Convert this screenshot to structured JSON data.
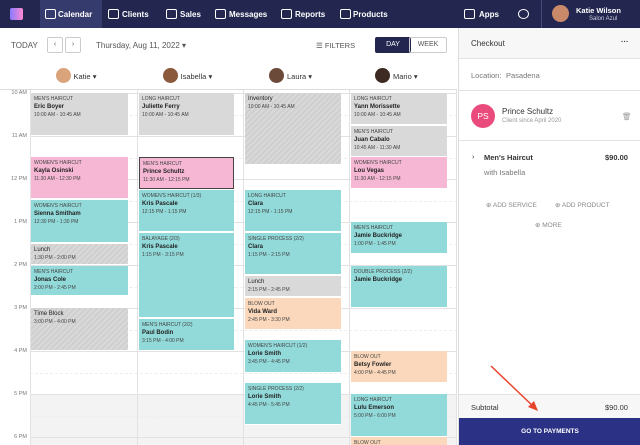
{
  "nav": {
    "items": [
      "Calendar",
      "Clients",
      "Sales",
      "Messages",
      "Reports",
      "Products"
    ],
    "apps": "Apps",
    "user": {
      "name": "Katie Wilson",
      "salon": "Salon Azul"
    }
  },
  "toolbar": {
    "today": "TODAY",
    "date": "Thursday, Aug 11, 2022",
    "filters": "FILTERS",
    "day": "DAY",
    "week": "WEEK"
  },
  "calendar": {
    "hours": [
      "10 AM",
      "11 AM",
      "12 PM",
      "1 PM",
      "2 PM",
      "3 PM",
      "4 PM",
      "5 PM",
      "6 PM"
    ],
    "staff": [
      {
        "name": "Katie",
        "appointments": [
          {
            "service": "MEN'S HAIRCUT",
            "client": "Eric Boyer",
            "time": "10:00 AM - 10:45 AM"
          },
          {
            "service": "WOMEN'S HAIRCUT",
            "client": "Kayla Osinski",
            "time": "11:30 AM - 12:30 PM"
          },
          {
            "service": "WOMEN'S HAIRCUT",
            "client": "Sienna Smitham",
            "time": "12:30 PM - 1:30 PM"
          },
          {
            "title": "Lunch",
            "time": "1:30 PM - 2:00 PM"
          },
          {
            "service": "MEN'S HAIRCUT",
            "client": "Jonas Cole",
            "time": "2:00 PM - 2:45 PM"
          },
          {
            "title": "Time Block",
            "time": "3:00 PM - 4:00 PM"
          }
        ]
      },
      {
        "name": "Isabella",
        "appointments": [
          {
            "service": "LONG HAIRCUT",
            "client": "Juliette Ferry",
            "time": "10:00 AM - 10:45 AM"
          },
          {
            "service": "MEN'S HAIRCUT",
            "client": "Prince Schultz",
            "time": "11:30 AM - 12:15 PM"
          },
          {
            "service": "WOMEN'S HAIRCUT (1/3)",
            "client": "Kris Pascale",
            "time": "12:15 PM - 1:15 PM"
          },
          {
            "service": "BALAYAGE (2/3)",
            "client": "Kris Pascale",
            "time": "1:15 PM - 3:15 PM"
          },
          {
            "service": "MEN'S HAIRCUT (2/2)",
            "client": "Paul Bodin",
            "time": "3:15 PM - 4:00 PM"
          }
        ]
      },
      {
        "name": "Laura",
        "appointments": [
          {
            "title": "Inventory",
            "time": "10:00 AM - 10:45 AM"
          },
          {
            "service": "LONG HAIRCUT",
            "client": "Clara",
            "time": "12:15 PM - 1:15 PM"
          },
          {
            "service": "SINGLE PROCESS (2/2)",
            "client": "Clara",
            "time": "1:15 PM - 2:15 PM"
          },
          {
            "title": "Lunch",
            "time": "2:15 PM - 2:45 PM"
          },
          {
            "service": "BLOW OUT",
            "client": "Vida Ward",
            "time": "2:45 PM - 3:30 PM"
          },
          {
            "service": "WOMEN'S HAIRCUT (1/2)",
            "client": "Lorie Smith",
            "time": "3:45 PM - 4:45 PM"
          },
          {
            "service": "SINGLE PROCESS (2/2)",
            "client": "Lorie Smith",
            "time": "4:45 PM - 5:45 PM"
          }
        ]
      },
      {
        "name": "Mario",
        "appointments": [
          {
            "service": "LONG HAIRCUT",
            "client": "Yann Morissette",
            "time": "10:00 AM - 10:45 AM"
          },
          {
            "service": "MEN'S HAIRCUT",
            "client": "Juan Cabalo",
            "time": "10:45 AM - 11:30 AM"
          },
          {
            "service": "WOMEN'S HAIRCUT",
            "client": "Lou Vegas",
            "time": "11:30 AM - 12:15 PM"
          },
          {
            "service": "MEN'S HAIRCUT",
            "client": "Jamie Buckridge",
            "time": "1:00 PM - 1:45 PM"
          },
          {
            "service": "DOUBLE PROCESS (2/2)",
            "client": "Jamie Buckridge"
          },
          {
            "service": "BLOW OUT",
            "client": "Betsy Fowler",
            "time": "4:00 PM - 4:45 PM"
          },
          {
            "service": "LONG HAIRCUT",
            "client": "Lulu Emerson",
            "time": "5:00 PM - 6:00 PM"
          },
          {
            "service": "BLOW OUT"
          }
        ]
      }
    ]
  },
  "checkout": {
    "title": "Checkout",
    "menu": "···",
    "location_label": "Location:",
    "location": "Pasadena",
    "client": {
      "initials": "PS",
      "name": "Prince Schultz",
      "since": "Client since April 2020"
    },
    "item": {
      "service": "Men's Haircut",
      "price": "$90.00",
      "staff": "with Isabella"
    },
    "actions": [
      "ADD SERVICE",
      "ADD PRODUCT",
      "MORE"
    ],
    "subtotal_label": "Subtotal",
    "subtotal": "$90.00",
    "button": "GO TO PAYMENTS"
  }
}
